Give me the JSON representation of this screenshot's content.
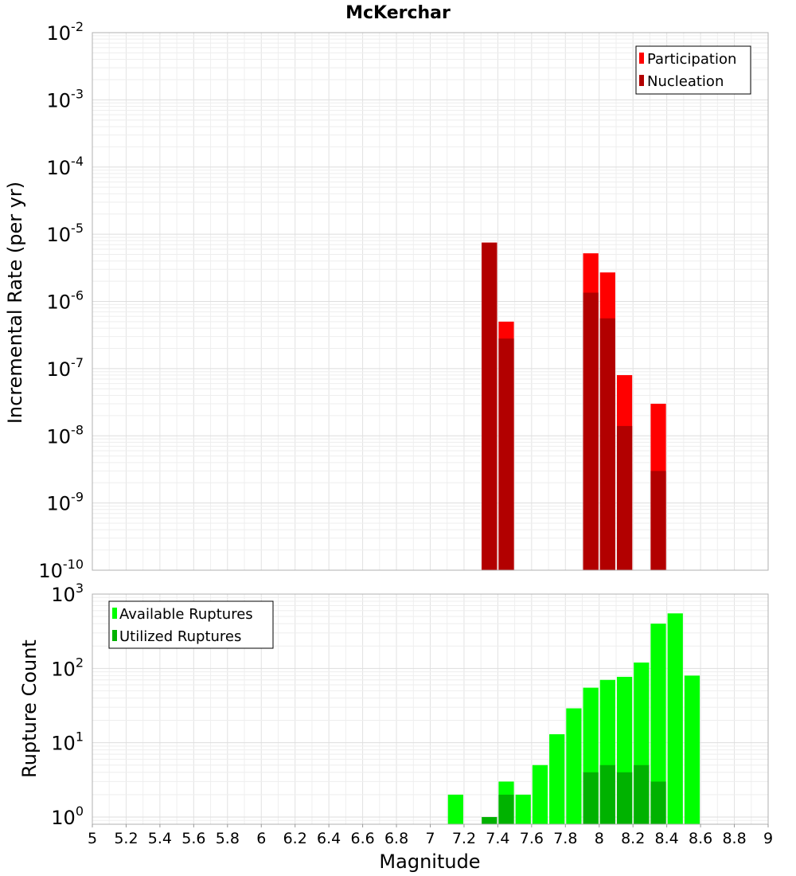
{
  "chart_data": [
    {
      "type": "bar",
      "title": "McKerchar",
      "ylabel": "Incremental Rate (per yr)",
      "xlabel": "",
      "y_scale": "log",
      "ylim": [
        1e-10,
        0.01
      ],
      "xlim": [
        5,
        9
      ],
      "grid": true,
      "legend_position": "top-right",
      "y_ticks": [
        {
          "base": "10",
          "exp": "-10"
        },
        {
          "base": "10",
          "exp": "-9"
        },
        {
          "base": "10",
          "exp": "-8"
        },
        {
          "base": "10",
          "exp": "-7"
        },
        {
          "base": "10",
          "exp": "-6"
        },
        {
          "base": "10",
          "exp": "-5"
        },
        {
          "base": "10",
          "exp": "-4"
        },
        {
          "base": "10",
          "exp": "-3"
        },
        {
          "base": "10",
          "exp": "-2"
        }
      ],
      "series": [
        {
          "name": "Participation",
          "color": "#ff0000",
          "x": [
            7.35,
            7.45,
            7.95,
            8.05,
            8.15,
            8.35
          ],
          "values": [
            7.5e-06,
            5e-07,
            5.2e-06,
            2.7e-06,
            8e-08,
            3e-08
          ]
        },
        {
          "name": "Nucleation",
          "color": "#b20000",
          "x": [
            7.35,
            7.45,
            7.95,
            8.05,
            8.15,
            8.35
          ],
          "values": [
            7.5e-06,
            2.8e-07,
            1.35e-06,
            5.6e-07,
            1.4e-08,
            3e-09
          ]
        }
      ]
    },
    {
      "type": "bar",
      "title": "",
      "ylabel": "Rupture Count",
      "xlabel": "Magnitude",
      "y_scale": "log",
      "ylim": [
        0.8,
        1000
      ],
      "xlim": [
        5,
        9
      ],
      "grid": true,
      "legend_position": "top-left",
      "y_ticks": [
        {
          "base": "10",
          "exp": "0",
          "value": 1
        },
        {
          "base": "10",
          "exp": "1",
          "value": 10
        },
        {
          "base": "10",
          "exp": "2",
          "value": 100
        },
        {
          "base": "10",
          "exp": "3",
          "value": 1000
        }
      ],
      "x_ticks": [
        "5",
        "5.2",
        "5.4",
        "5.6",
        "5.8",
        "6",
        "6.2",
        "6.4",
        "6.6",
        "6.8",
        "7",
        "7.2",
        "7.4",
        "7.6",
        "7.8",
        "8",
        "8.2",
        "8.4",
        "8.6",
        "8.8",
        "9"
      ],
      "series": [
        {
          "name": "Available Ruptures",
          "color": "#00ff00",
          "x": [
            7.15,
            7.45,
            7.55,
            7.65,
            7.75,
            7.85,
            7.95,
            8.05,
            8.15,
            8.25,
            8.35,
            8.45,
            8.55
          ],
          "values": [
            2,
            3,
            2,
            5,
            13,
            29,
            55,
            70,
            77,
            120,
            400,
            550,
            80
          ]
        },
        {
          "name": "Utilized Ruptures",
          "color": "#00b200",
          "x": [
            7.35,
            7.45,
            7.95,
            8.05,
            8.15,
            8.25,
            8.35
          ],
          "values": [
            1,
            2,
            4,
            5,
            4,
            5,
            3
          ]
        }
      ]
    }
  ]
}
